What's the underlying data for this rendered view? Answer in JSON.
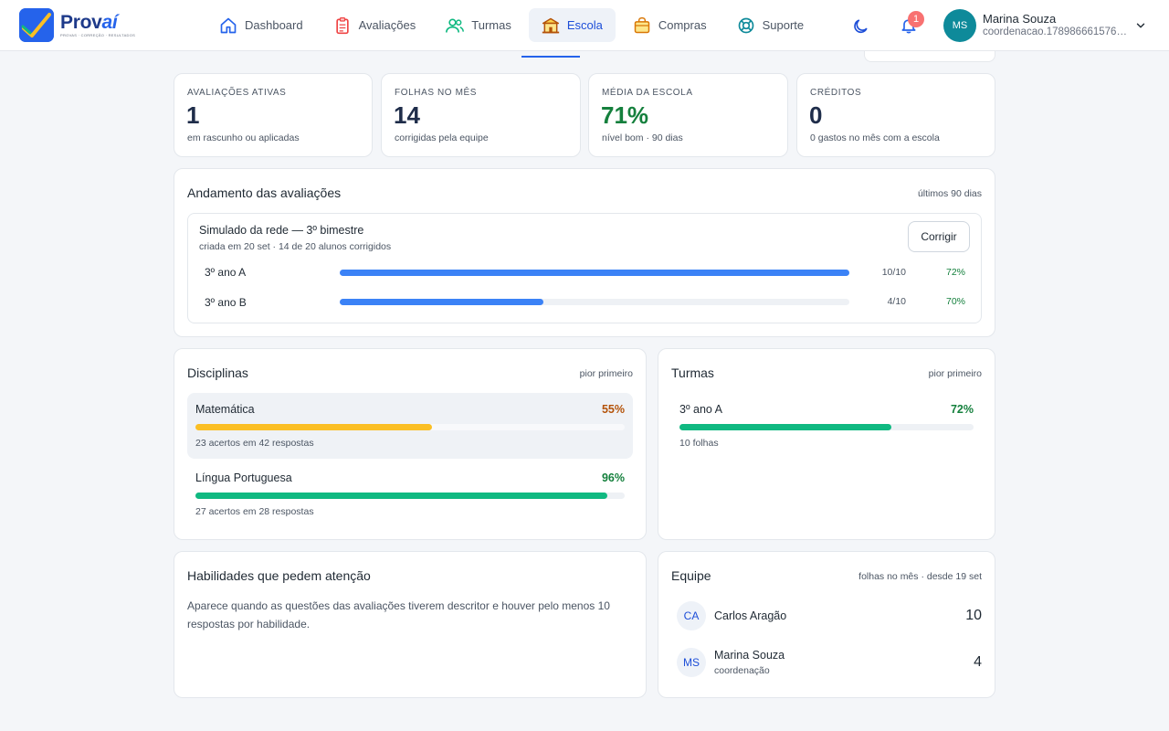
{
  "brand": {
    "name_main": "Prov",
    "name_accent": "aí",
    "tagline": "PROVAS · CORREÇÃO · RESULTADOS"
  },
  "nav": [
    {
      "label": "Dashboard",
      "icon": "home-icon",
      "active": false
    },
    {
      "label": "Avaliações",
      "icon": "clipboard-icon",
      "active": false
    },
    {
      "label": "Turmas",
      "icon": "users-icon",
      "active": false
    },
    {
      "label": "Escola",
      "icon": "school-icon",
      "active": true
    },
    {
      "label": "Compras",
      "icon": "shopping-bag-icon",
      "active": false
    },
    {
      "label": "Suporte",
      "icon": "lifebuoy-icon",
      "active": false
    }
  ],
  "header": {
    "notifications_count": "1",
    "user": {
      "initials": "MS",
      "name": "Marina Souza",
      "email": "coordenacao.178986661576…"
    }
  },
  "kpis": [
    {
      "label": "Avaliações ativas",
      "value": "1",
      "sub": "em rascunho ou aplicadas",
      "color": "#1f2d4a"
    },
    {
      "label": "Folhas no mês",
      "value": "14",
      "sub": "corrigidas pela equipe",
      "color": "#1f2d4a"
    },
    {
      "label": "Média da escola",
      "value": "71%",
      "sub": "nível bom · 90 dias",
      "color": "#15803d"
    },
    {
      "label": "Créditos",
      "value": "0",
      "sub": "0 gastos no mês com a escola",
      "color": "#1f2d4a"
    }
  ],
  "progress": {
    "title": "Andamento das avaliações",
    "period": "últimos 90 dias",
    "assessment": {
      "name": "Simulado da rede — 3º bimestre",
      "sub": "criada em 20 set · 14 de 20 alunos corrigidos",
      "button": "Corrigir",
      "rows": [
        {
          "label": "3º ano A",
          "count": "10/10",
          "pct": "72%",
          "fraction": 1.0
        },
        {
          "label": "3º ano B",
          "count": "4/10",
          "pct": "70%",
          "fraction": 0.4
        }
      ]
    }
  },
  "subjects": {
    "title": "Disciplinas",
    "sort": "pior primeiro",
    "items": [
      {
        "name": "Matemática",
        "pct": "55%",
        "fraction": 0.55,
        "sub": "23 acertos em 42 respostas",
        "bar_color": "#fbbf24",
        "pct_color": "#b45309",
        "highlight": true
      },
      {
        "name": "Língua Portuguesa",
        "pct": "96%",
        "fraction": 0.96,
        "sub": "27 acertos em 28 respostas",
        "bar_color": "#10b981",
        "pct_color": "#15803d",
        "highlight": false
      }
    ]
  },
  "classes": {
    "title": "Turmas",
    "sort": "pior primeiro",
    "items": [
      {
        "name": "3º ano A",
        "pct": "72%",
        "fraction": 0.72,
        "sub": "10 folhas",
        "bar_color": "#10b981",
        "pct_color": "#15803d"
      }
    ]
  },
  "skills": {
    "title": "Habilidades que pedem atenção",
    "text": "Aparece quando as questões das avaliações tiverem descritor e houver pelo menos 10 respostas por habilidade."
  },
  "team": {
    "title": "Equipe",
    "meta": "folhas no mês · desde 19 set",
    "members": [
      {
        "initials": "CA",
        "name": "Carlos Aragão",
        "role": "",
        "count": "10"
      },
      {
        "initials": "MS",
        "name": "Marina Souza",
        "role": "coordenação",
        "count": "4"
      }
    ]
  }
}
